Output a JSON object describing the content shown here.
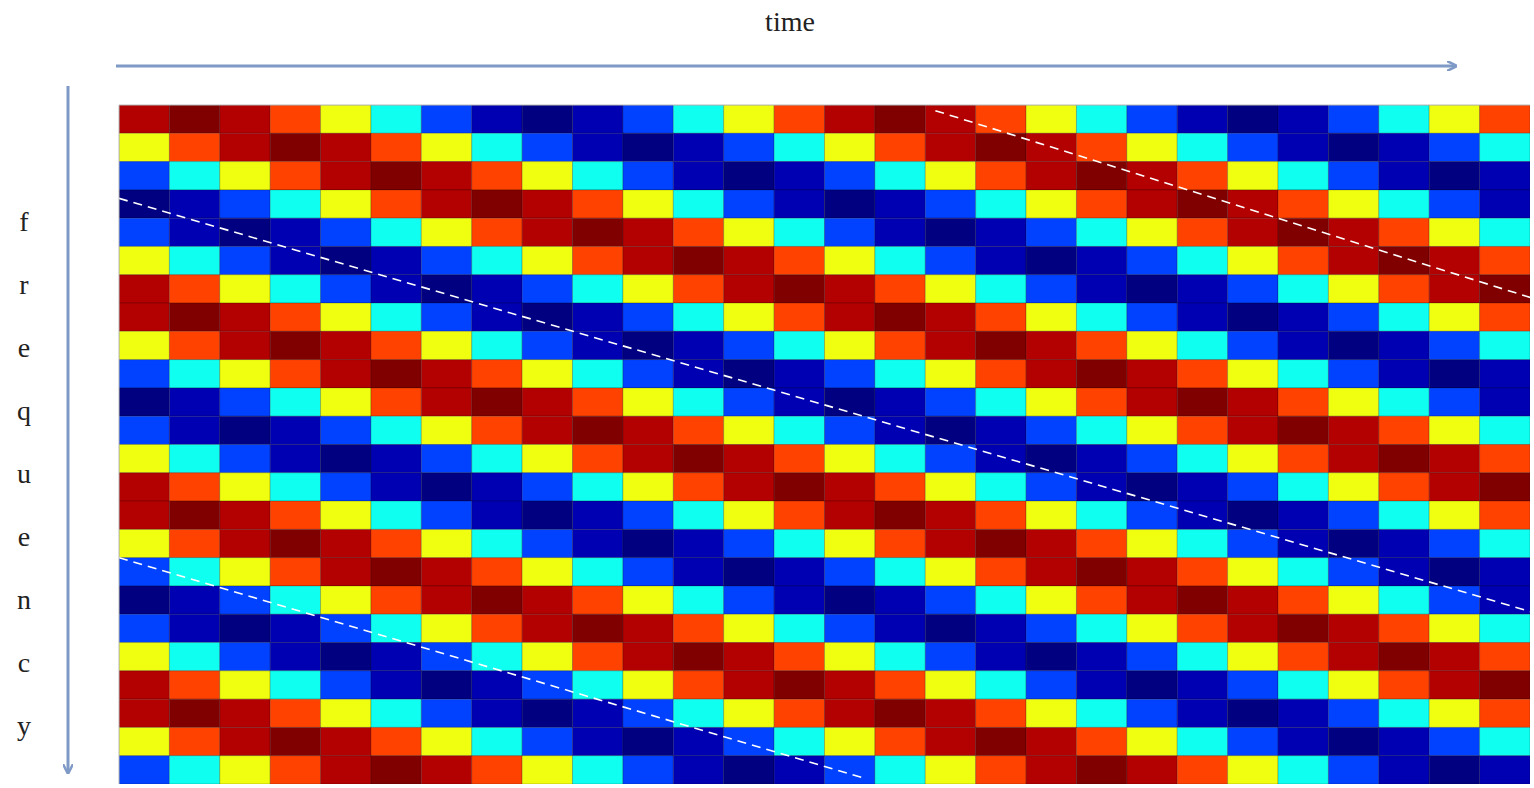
{
  "chart_data": {
    "type": "heatmap",
    "x_label": "time",
    "y_label": "frequency",
    "xlim": [
      0,
      28
    ],
    "ylim": [
      0,
      24
    ],
    "xticks": [],
    "yticks": [],
    "tick_labels": false,
    "cells": [
      [
        0.95,
        1,
        0.95,
        0.81,
        0.61,
        0.39,
        0.19,
        0.05,
        0,
        0.05,
        0.19,
        0.39,
        0.61,
        0.81,
        0.95,
        1,
        0.95,
        0.81,
        0.61,
        0.39,
        0.19,
        0.05,
        0,
        0.05,
        0.19,
        0.39,
        0.61,
        0.81
      ],
      [
        0.61,
        0.81,
        0.95,
        1,
        0.95,
        0.81,
        0.61,
        0.39,
        0.19,
        0.05,
        0,
        0.05,
        0.19,
        0.39,
        0.61,
        0.81,
        0.95,
        1,
        0.95,
        0.81,
        0.61,
        0.39,
        0.19,
        0.05,
        0,
        0.05,
        0.19,
        0.39
      ],
      [
        0.19,
        0.39,
        0.61,
        0.81,
        0.95,
        1,
        0.95,
        0.81,
        0.61,
        0.39,
        0.19,
        0.05,
        0,
        0.05,
        0.19,
        0.39,
        0.61,
        0.81,
        0.95,
        1,
        0.95,
        0.81,
        0.61,
        0.39,
        0.19,
        0.05,
        0,
        0.05
      ],
      [
        0,
        0.05,
        0.19,
        0.39,
        0.61,
        0.81,
        0.95,
        1,
        0.95,
        0.81,
        0.61,
        0.39,
        0.19,
        0.05,
        0,
        0.05,
        0.19,
        0.39,
        0.61,
        0.81,
        0.95,
        1,
        0.95,
        0.81,
        0.61,
        0.39,
        0.19,
        0.05
      ],
      [
        0.19,
        0.05,
        0,
        0.05,
        0.19,
        0.39,
        0.61,
        0.81,
        0.95,
        1,
        0.95,
        0.81,
        0.61,
        0.39,
        0.19,
        0.05,
        0,
        0.05,
        0.19,
        0.39,
        0.61,
        0.81,
        0.95,
        1,
        0.95,
        0.81,
        0.61,
        0.39
      ],
      [
        0.61,
        0.39,
        0.19,
        0.05,
        0,
        0.05,
        0.19,
        0.39,
        0.61,
        0.81,
        0.95,
        1,
        0.95,
        0.81,
        0.61,
        0.39,
        0.19,
        0.05,
        0,
        0.05,
        0.19,
        0.39,
        0.61,
        0.81,
        0.95,
        1,
        0.95,
        0.81
      ],
      [
        0.95,
        0.81,
        0.61,
        0.39,
        0.19,
        0.05,
        0,
        0.05,
        0.19,
        0.39,
        0.61,
        0.81,
        0.95,
        1,
        0.95,
        0.81,
        0.61,
        0.39,
        0.19,
        0.05,
        0,
        0.05,
        0.19,
        0.39,
        0.61,
        0.81,
        0.95,
        1
      ],
      [
        0.95,
        1,
        0.95,
        0.81,
        0.61,
        0.39,
        0.19,
        0.05,
        0,
        0.05,
        0.19,
        0.39,
        0.61,
        0.81,
        0.95,
        1,
        0.95,
        0.81,
        0.61,
        0.39,
        0.19,
        0.05,
        0,
        0.05,
        0.19,
        0.39,
        0.61,
        0.81
      ],
      [
        0.61,
        0.81,
        0.95,
        1,
        0.95,
        0.81,
        0.61,
        0.39,
        0.19,
        0.05,
        0,
        0.05,
        0.19,
        0.39,
        0.61,
        0.81,
        0.95,
        1,
        0.95,
        0.81,
        0.61,
        0.39,
        0.19,
        0.05,
        0,
        0.05,
        0.19,
        0.39
      ],
      [
        0.19,
        0.39,
        0.61,
        0.81,
        0.95,
        1,
        0.95,
        0.81,
        0.61,
        0.39,
        0.19,
        0.05,
        0,
        0.05,
        0.19,
        0.39,
        0.61,
        0.81,
        0.95,
        1,
        0.95,
        0.81,
        0.61,
        0.39,
        0.19,
        0.05,
        0,
        0.05
      ],
      [
        0,
        0.05,
        0.19,
        0.39,
        0.61,
        0.81,
        0.95,
        1,
        0.95,
        0.81,
        0.61,
        0.39,
        0.19,
        0.05,
        0,
        0.05,
        0.19,
        0.39,
        0.61,
        0.81,
        0.95,
        1,
        0.95,
        0.81,
        0.61,
        0.39,
        0.19,
        0.05
      ],
      [
        0.19,
        0.05,
        0,
        0.05,
        0.19,
        0.39,
        0.61,
        0.81,
        0.95,
        1,
        0.95,
        0.81,
        0.61,
        0.39,
        0.19,
        0.05,
        0,
        0.05,
        0.19,
        0.39,
        0.61,
        0.81,
        0.95,
        1,
        0.95,
        0.81,
        0.61,
        0.39
      ],
      [
        0.61,
        0.39,
        0.19,
        0.05,
        0,
        0.05,
        0.19,
        0.39,
        0.61,
        0.81,
        0.95,
        1,
        0.95,
        0.81,
        0.61,
        0.39,
        0.19,
        0.05,
        0,
        0.05,
        0.19,
        0.39,
        0.61,
        0.81,
        0.95,
        1,
        0.95,
        0.81
      ],
      [
        0.95,
        0.81,
        0.61,
        0.39,
        0.19,
        0.05,
        0,
        0.05,
        0.19,
        0.39,
        0.61,
        0.81,
        0.95,
        1,
        0.95,
        0.81,
        0.61,
        0.39,
        0.19,
        0.05,
        0,
        0.05,
        0.19,
        0.39,
        0.61,
        0.81,
        0.95,
        1
      ],
      [
        0.95,
        1,
        0.95,
        0.81,
        0.61,
        0.39,
        0.19,
        0.05,
        0,
        0.05,
        0.19,
        0.39,
        0.61,
        0.81,
        0.95,
        1,
        0.95,
        0.81,
        0.61,
        0.39,
        0.19,
        0.05,
        0,
        0.05,
        0.19,
        0.39,
        0.61,
        0.81
      ],
      [
        0.61,
        0.81,
        0.95,
        1,
        0.95,
        0.81,
        0.61,
        0.39,
        0.19,
        0.05,
        0,
        0.05,
        0.19,
        0.39,
        0.61,
        0.81,
        0.95,
        1,
        0.95,
        0.81,
        0.61,
        0.39,
        0.19,
        0.05,
        0,
        0.05,
        0.19,
        0.39
      ],
      [
        0.19,
        0.39,
        0.61,
        0.81,
        0.95,
        1,
        0.95,
        0.81,
        0.61,
        0.39,
        0.19,
        0.05,
        0,
        0.05,
        0.19,
        0.39,
        0.61,
        0.81,
        0.95,
        1,
        0.95,
        0.81,
        0.61,
        0.39,
        0.19,
        0.05,
        0,
        0.05
      ],
      [
        0,
        0.05,
        0.19,
        0.39,
        0.61,
        0.81,
        0.95,
        1,
        0.95,
        0.81,
        0.61,
        0.39,
        0.19,
        0.05,
        0,
        0.05,
        0.19,
        0.39,
        0.61,
        0.81,
        0.95,
        1,
        0.95,
        0.81,
        0.61,
        0.39,
        0.19,
        0.05
      ],
      [
        0.19,
        0.05,
        0,
        0.05,
        0.19,
        0.39,
        0.61,
        0.81,
        0.95,
        1,
        0.95,
        0.81,
        0.61,
        0.39,
        0.19,
        0.05,
        0,
        0.05,
        0.19,
        0.39,
        0.61,
        0.81,
        0.95,
        1,
        0.95,
        0.81,
        0.61,
        0.39
      ],
      [
        0.61,
        0.39,
        0.19,
        0.05,
        0,
        0.05,
        0.19,
        0.39,
        0.61,
        0.81,
        0.95,
        1,
        0.95,
        0.81,
        0.61,
        0.39,
        0.19,
        0.05,
        0,
        0.05,
        0.19,
        0.39,
        0.61,
        0.81,
        0.95,
        1,
        0.95,
        0.81
      ],
      [
        0.95,
        0.81,
        0.61,
        0.39,
        0.19,
        0.05,
        0,
        0.05,
        0.19,
        0.39,
        0.61,
        0.81,
        0.95,
        1,
        0.95,
        0.81,
        0.61,
        0.39,
        0.19,
        0.05,
        0,
        0.05,
        0.19,
        0.39,
        0.61,
        0.81,
        0.95,
        1
      ],
      [
        0.95,
        1,
        0.95,
        0.81,
        0.61,
        0.39,
        0.19,
        0.05,
        0,
        0.05,
        0.19,
        0.39,
        0.61,
        0.81,
        0.95,
        1,
        0.95,
        0.81,
        0.61,
        0.39,
        0.19,
        0.05,
        0,
        0.05,
        0.19,
        0.39,
        0.61,
        0.81
      ],
      [
        0.61,
        0.81,
        0.95,
        1,
        0.95,
        0.81,
        0.61,
        0.39,
        0.19,
        0.05,
        0,
        0.05,
        0.19,
        0.39,
        0.61,
        0.81,
        0.95,
        1,
        0.95,
        0.81,
        0.61,
        0.39,
        0.19,
        0.05,
        0,
        0.05,
        0.19,
        0.39
      ],
      [
        0.19,
        0.39,
        0.61,
        0.81,
        0.95,
        1,
        0.95,
        0.81,
        0.61,
        0.39,
        0.19,
        0.05,
        0,
        0.05,
        0.19,
        0.39,
        0.61,
        0.81,
        0.95,
        1,
        0.95,
        0.81,
        0.61,
        0.39,
        0.19,
        0.05,
        0,
        0.05
      ]
    ],
    "lines": [
      {
        "x": [
          16.2,
          28
        ],
        "y": [
          0.2,
          6.8
        ],
        "color": "#ffffff",
        "line_style": "dashed"
      },
      {
        "x": [
          0,
          28
        ],
        "y": [
          3.3,
          17.9
        ],
        "color": "#ffffff",
        "line_style": "dashed"
      },
      {
        "x": [
          0,
          14.8
        ],
        "y": [
          16.0,
          23.8
        ],
        "color": "#ffffff",
        "line_style": "dashed"
      }
    ]
  }
}
